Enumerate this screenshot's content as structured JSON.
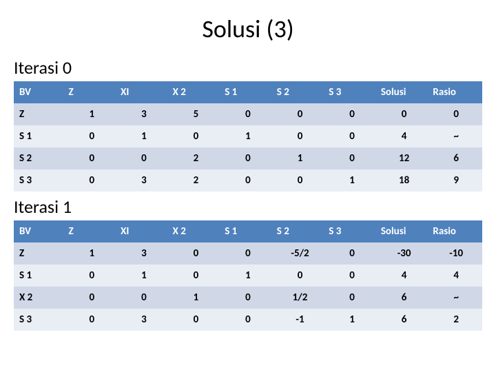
{
  "title": "Solusi (3)",
  "section0": {
    "heading": "Iterasi 0"
  },
  "section1": {
    "heading": "Iterasi 1"
  },
  "tables": {
    "t0": {
      "header_bg": "#4f81bd",
      "header_fg": "#ffffff",
      "row_even_bg": "#d0d8e8",
      "row_odd_bg": "#e9edf4",
      "columns": [
        "BV",
        "Z",
        "XI",
        "X 2",
        "S 1",
        "S 2",
        "S 3",
        "Solusi",
        "Rasio"
      ],
      "rows": [
        [
          "Z",
          "1",
          "3",
          "5",
          "0",
          "0",
          "0",
          "0",
          "0"
        ],
        [
          "S 1",
          "0",
          "1",
          "0",
          "1",
          "0",
          "0",
          "4",
          "~"
        ],
        [
          "S 2",
          "0",
          "0",
          "2",
          "0",
          "1",
          "0",
          "12",
          "6"
        ],
        [
          "S 3",
          "0",
          "3",
          "2",
          "0",
          "0",
          "1",
          "18",
          "9"
        ]
      ]
    },
    "t1": {
      "header_bg": "#4f81bd",
      "header_fg": "#ffffff",
      "row_even_bg": "#d0d8e8",
      "row_odd_bg": "#e9edf4",
      "columns": [
        "BV",
        "Z",
        "XI",
        "X 2",
        "S 1",
        "S 2",
        "S 3",
        "Solusi",
        "Rasio"
      ],
      "rows": [
        [
          "Z",
          "1",
          "3",
          "0",
          "0",
          "-5/2",
          "0",
          "-30",
          "-10"
        ],
        [
          "S 1",
          "0",
          "1",
          "0",
          "1",
          "0",
          "0",
          "4",
          "4"
        ],
        [
          "X 2",
          "0",
          "0",
          "1",
          "0",
          "1/2",
          "0",
          "6",
          "~"
        ],
        [
          "S 3",
          "0",
          "3",
          "0",
          "0",
          "-1",
          "1",
          "6",
          "2"
        ]
      ]
    }
  }
}
